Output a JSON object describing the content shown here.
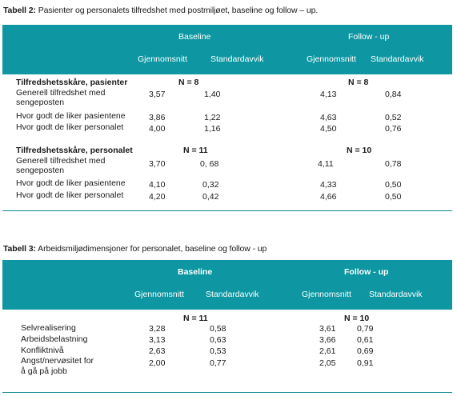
{
  "table2": {
    "caption_label": "Tabell 2:",
    "caption_text": " Pasienter og personalets tilfredshet med postmiljøet, baseline og follow – up.",
    "header": {
      "baseline": "Baseline",
      "followup": "Follow - up",
      "mean": "Gjennomsnitt",
      "sd": "Standardavvik"
    },
    "sections": [
      {
        "title": "Tilfredshetsskåre, pasienter",
        "n_baseline": "N = 8",
        "n_followup": "N = 8",
        "rows": [
          {
            "label1": "Generell tilfredshet med",
            "label2": "sengeposten",
            "b_mean": "3,57",
            "b_sd": "1,40",
            "f_mean": "4,13",
            "f_sd": "0,84"
          },
          {
            "label1": "Hvor godt de liker pasientene",
            "b_mean": "3,86",
            "b_sd": "1,22",
            "f_mean": "4,63",
            "f_sd": "0,52"
          },
          {
            "label1": "Hvor godt de liker personalet",
            "b_mean": "4,00",
            "b_sd": "1,16",
            "f_mean": "4,50",
            "f_sd": "0,76"
          }
        ]
      },
      {
        "title": "Tilfredshetsskåre, personalet",
        "n_baseline": "N = 11",
        "n_followup": "N = 10",
        "rows": [
          {
            "label1": "Generell tilfredshet med",
            "label2": "sengeposten",
            "b_mean": "3,70",
            "b_sd": "0, 68",
            "f_mean": "4,11",
            "f_sd": "0,78"
          },
          {
            "label1": "Hvor godt de liker pasientene",
            "b_mean": "4,10",
            "b_sd": "0,32",
            "f_mean": "4,33",
            "f_sd": "0,50"
          },
          {
            "label1": "Hvor godt de liker personalet",
            "b_mean": "4,20",
            "b_sd": "0,42",
            "f_mean": "4,66",
            "f_sd": "0,50"
          }
        ]
      }
    ]
  },
  "table3": {
    "caption_label": "Tabell 3:",
    "caption_text": "  Arbeidsmiljødimensjoner for personalet, baseline og follow - up",
    "header": {
      "baseline": "Baseline",
      "followup": "Follow - up",
      "mean": "Gjennomsnitt",
      "sd": "Standardavvik"
    },
    "n_baseline": "N = 11",
    "n_followup": "N = 10",
    "rows": [
      {
        "label1": "Selvrealisering",
        "b_mean": "3,28",
        "b_sd": "0,58",
        "f_mean": "3,61",
        "f_sd": "0,79"
      },
      {
        "label1": "Arbeidsbelastning",
        "b_mean": "3,13",
        "b_sd": "0,63",
        "f_mean": "3,66",
        "f_sd": "0,61"
      },
      {
        "label1": "Konfliktnivå",
        "b_mean": "2,63",
        "b_sd": "0,53",
        "f_mean": "2,61",
        "f_sd": "0,69"
      },
      {
        "label1": "Angst/nervøsitet for",
        "label2": "å gå på jobb",
        "b_mean": "2,00",
        "b_sd": "0,77",
        "f_mean": "2,05",
        "f_sd": "0,91"
      }
    ]
  }
}
